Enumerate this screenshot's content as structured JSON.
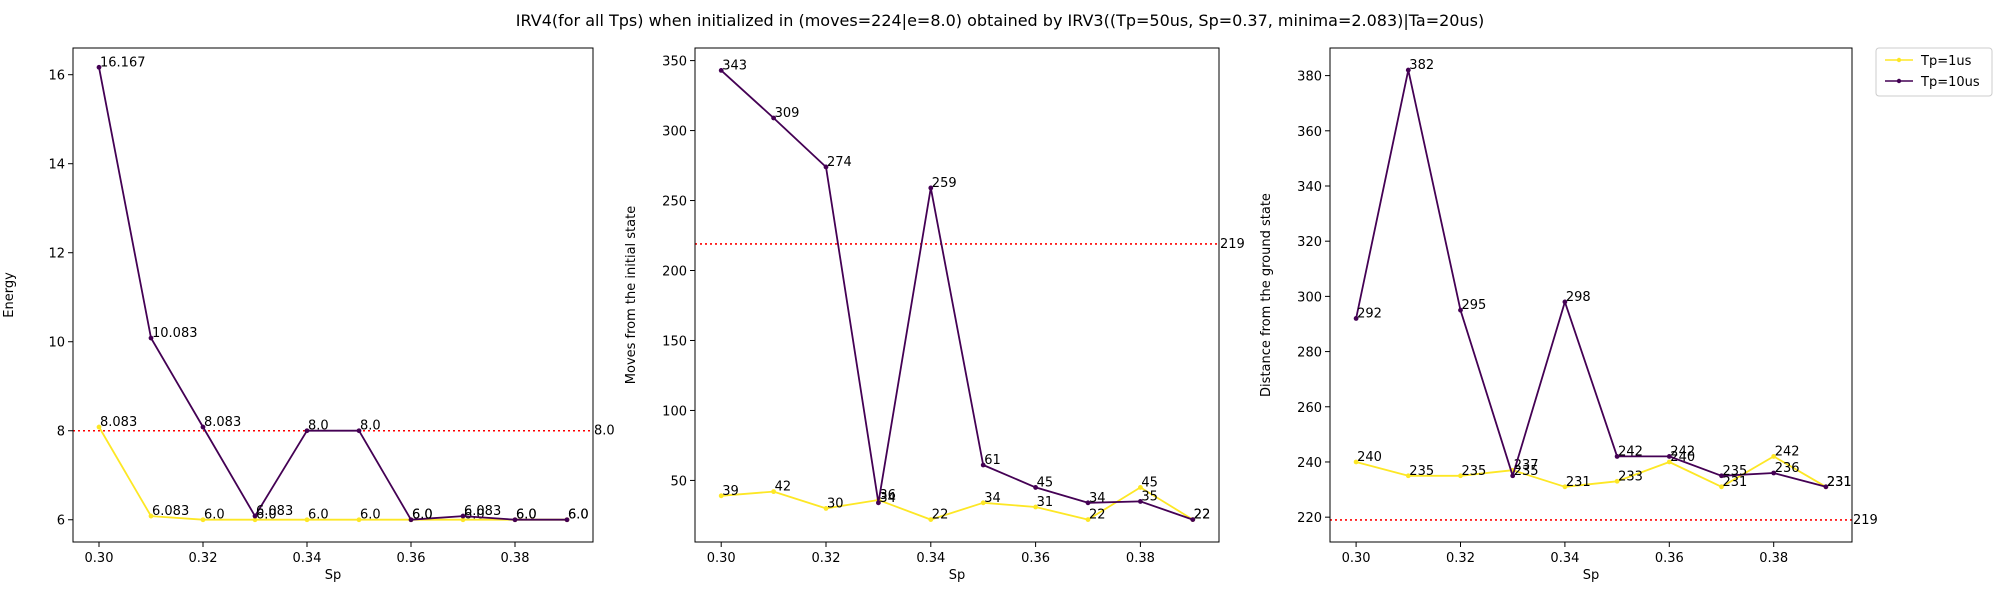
{
  "figure": {
    "title": "IRV4(for all Tps) when initialized in (moves=224|e=8.0) obtained by IRV3((Tp=50us, Sp=0.37, minima=2.083)|Ta=20us)"
  },
  "colors": {
    "series_yellow": "#fde725",
    "series_purple": "#440154",
    "reference_line": "#ff0000"
  },
  "legend": {
    "placement": "outside-top-right",
    "entries": [
      {
        "label": "Tp=1us",
        "color": "#fde725"
      },
      {
        "label": "Tp=10us",
        "color": "#440154"
      }
    ]
  },
  "chart_data": [
    {
      "type": "line",
      "xlabel": "Sp",
      "ylabel": "Energy",
      "x": [
        0.3,
        0.31,
        0.32,
        0.33,
        0.34,
        0.35,
        0.36,
        0.37,
        0.38,
        0.39
      ],
      "xlim": [
        0.295,
        0.395
      ],
      "ylim": [
        5.5,
        16.6
      ],
      "xticks": [
        0.3,
        0.32,
        0.34,
        0.36,
        0.38
      ],
      "xtick_labels": [
        "0.30",
        "0.32",
        "0.34",
        "0.36",
        "0.38"
      ],
      "yticks": [
        6,
        8,
        10,
        12,
        14,
        16
      ],
      "ytick_labels": [
        "6",
        "8",
        "10",
        "12",
        "14",
        "16"
      ],
      "hline": {
        "value": 8.0,
        "label": "8.0",
        "style": "dotted"
      },
      "series": [
        {
          "name": "Tp=1us",
          "values": [
            8.083,
            6.083,
            6.0,
            6.0,
            6.0,
            6.0,
            6.0,
            6.0,
            6.0,
            6.0
          ],
          "labels": [
            "8.083",
            "6.083",
            "6.0",
            "6.0",
            "6.0",
            "6.0",
            "6.0",
            "6.0",
            "6.0",
            "6.0"
          ]
        },
        {
          "name": "Tp=10us",
          "values": [
            16.167,
            10.083,
            8.083,
            6.083,
            8.0,
            8.0,
            6.0,
            6.083,
            6.0,
            6.0
          ],
          "labels": [
            "16.167",
            "10.083",
            "8.083",
            "6.083",
            "8.0",
            "8.0",
            "6.0",
            "6.083",
            "6.0",
            "6.0"
          ]
        }
      ]
    },
    {
      "type": "line",
      "xlabel": "Sp",
      "ylabel": "Moves from the initial state",
      "x": [
        0.3,
        0.31,
        0.32,
        0.33,
        0.34,
        0.35,
        0.36,
        0.37,
        0.38,
        0.39
      ],
      "xlim": [
        0.295,
        0.395
      ],
      "ylim": [
        6,
        359
      ],
      "xticks": [
        0.3,
        0.32,
        0.34,
        0.36,
        0.38
      ],
      "xtick_labels": [
        "0.30",
        "0.32",
        "0.34",
        "0.36",
        "0.38"
      ],
      "yticks": [
        50,
        100,
        150,
        200,
        250,
        300,
        350
      ],
      "ytick_labels": [
        "50",
        "100",
        "150",
        "200",
        "250",
        "300",
        "350"
      ],
      "hline": {
        "value": 219,
        "label": "219",
        "style": "dotted"
      },
      "series": [
        {
          "name": "Tp=1us",
          "values": [
            39,
            42,
            30,
            36,
            22,
            34,
            31,
            22,
            45,
            22
          ],
          "labels": [
            "39",
            "42",
            "30",
            "36",
            "22",
            "34",
            "31",
            "22",
            "45",
            "22"
          ]
        },
        {
          "name": "Tp=10us",
          "values": [
            343,
            309,
            274,
            34,
            259,
            61,
            45,
            34,
            35,
            22
          ],
          "labels": [
            "343",
            "309",
            "274",
            "34",
            "259",
            "61",
            "45",
            "34",
            "35",
            "22"
          ]
        }
      ]
    },
    {
      "type": "line",
      "xlabel": "Sp",
      "ylabel": "Distance from the ground state",
      "x": [
        0.3,
        0.31,
        0.32,
        0.33,
        0.34,
        0.35,
        0.36,
        0.37,
        0.38,
        0.39
      ],
      "xlim": [
        0.295,
        0.395
      ],
      "ylim": [
        211,
        390
      ],
      "xticks": [
        0.3,
        0.32,
        0.34,
        0.36,
        0.38
      ],
      "xtick_labels": [
        "0.30",
        "0.32",
        "0.34",
        "0.36",
        "0.38"
      ],
      "yticks": [
        220,
        240,
        260,
        280,
        300,
        320,
        340,
        360,
        380
      ],
      "ytick_labels": [
        "220",
        "240",
        "260",
        "280",
        "300",
        "320",
        "340",
        "360",
        "380"
      ],
      "hline": {
        "value": 219,
        "label": "219",
        "style": "dotted"
      },
      "series": [
        {
          "name": "Tp=1us",
          "values": [
            240,
            235,
            235,
            237,
            231,
            233,
            240,
            231,
            242,
            231
          ],
          "labels": [
            "240",
            "235",
            "235",
            "237",
            "231",
            "233",
            "240",
            "231",
            "242",
            "231"
          ]
        },
        {
          "name": "Tp=10us",
          "values": [
            292,
            382,
            295,
            235,
            298,
            242,
            242,
            235,
            236,
            231
          ],
          "labels": [
            "292",
            "382",
            "295",
            "235",
            "298",
            "242",
            "242",
            "235",
            "236",
            "231"
          ]
        }
      ]
    }
  ]
}
